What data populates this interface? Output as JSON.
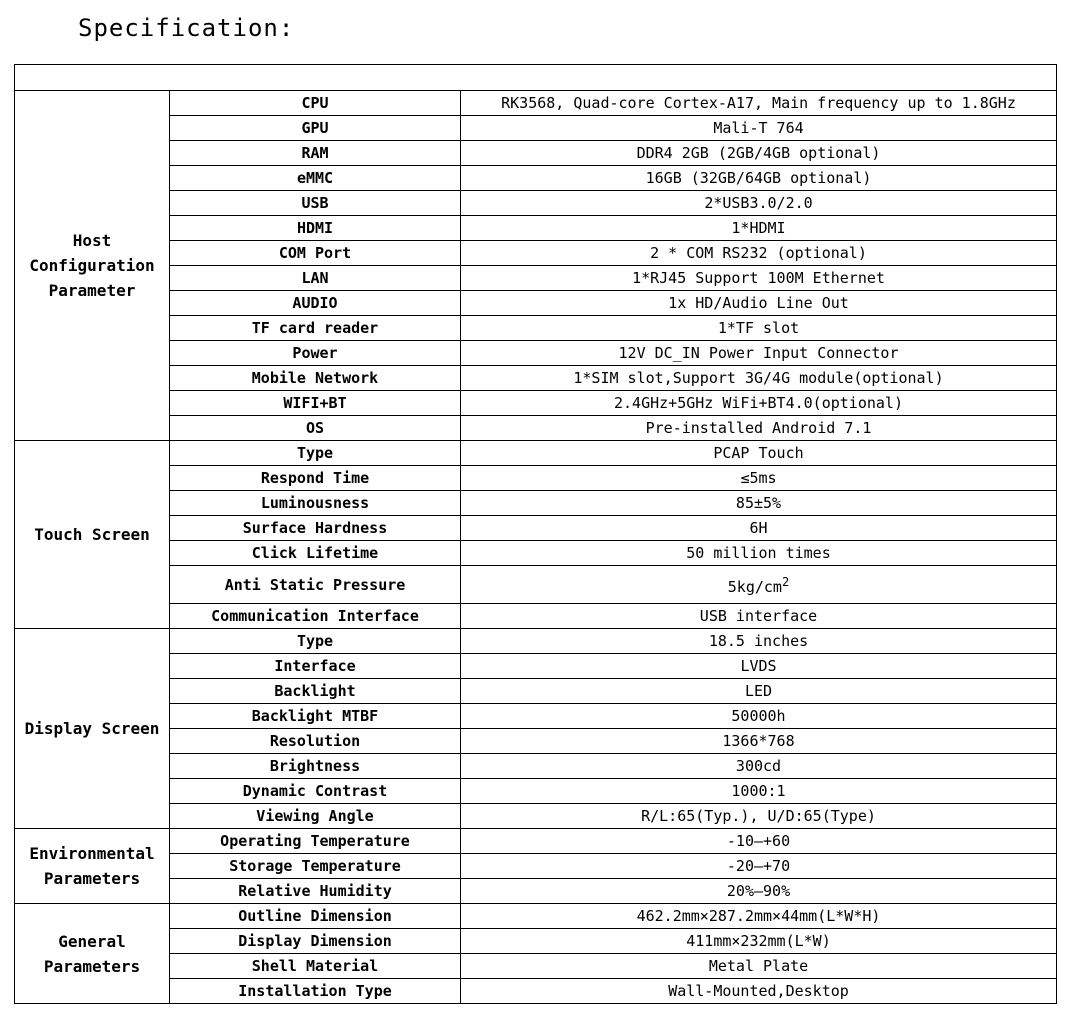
{
  "title": "Specification:",
  "groups": [
    {
      "label": "Host Configuration Parameter",
      "rows": [
        {
          "param": "CPU",
          "value": "RK3568, Quad-core Cortex-A17, Main frequency up to 1.8GHz"
        },
        {
          "param": "GPU",
          "value": "Mali-T 764"
        },
        {
          "param": "RAM",
          "value": "DDR4 2GB (2GB/4GB optional)"
        },
        {
          "param": "eMMC",
          "value": "16GB (32GB/64GB optional)"
        },
        {
          "param": "USB",
          "value": "2*USB3.0/2.0"
        },
        {
          "param": "HDMI",
          "value": "1*HDMI"
        },
        {
          "param": "COM Port",
          "value": "2 * COM RS232 (optional)"
        },
        {
          "param": "LAN",
          "value": "1*RJ45 Support 100M Ethernet"
        },
        {
          "param": "AUDIO",
          "value": "1x HD/Audio Line Out"
        },
        {
          "param": "TF card reader",
          "value": "1*TF slot"
        },
        {
          "param": "Power",
          "value": "12V DC_IN Power Input Connector"
        },
        {
          "param": "Mobile Network",
          "value": "1*SIM slot,Support 3G/4G module(optional)"
        },
        {
          "param": "WIFI+BT",
          "value": "2.4GHz+5GHz WiFi+BT4.0(optional)"
        },
        {
          "param": "OS",
          "value": "Pre-installed Android 7.1"
        }
      ]
    },
    {
      "label": "Touch Screen",
      "rows": [
        {
          "param": "Type",
          "value": "PCAP Touch"
        },
        {
          "param": "Respond Time",
          "value": "≤5ms"
        },
        {
          "param": "Luminousness",
          "value": "85±5%"
        },
        {
          "param": "Surface Hardness",
          "value": "6H"
        },
        {
          "param": "Click Lifetime",
          "value": "50 million times"
        },
        {
          "param": "Anti Static Pressure",
          "value": "5kg/cm",
          "sup": "2"
        },
        {
          "param": "Communication Interface",
          "value": "USB interface"
        }
      ]
    },
    {
      "label": "Display Screen",
      "rows": [
        {
          "param": "Type",
          "value": "18.5 inches"
        },
        {
          "param": "Interface",
          "value": "LVDS"
        },
        {
          "param": "Backlight",
          "value": "LED"
        },
        {
          "param": "Backlight MTBF",
          "value": "50000h"
        },
        {
          "param": "Resolution",
          "value": "1366*768"
        },
        {
          "param": "Brightness",
          "value": "300cd"
        },
        {
          "param": "Dynamic Contrast",
          "value": "1000:1"
        },
        {
          "param": "Viewing Angle",
          "value": "R/L:65(Typ.), U/D:65(Type)"
        }
      ]
    },
    {
      "label": "Environmental Parameters",
      "rows": [
        {
          "param": "Operating Temperature",
          "value": "-10—+60"
        },
        {
          "param": "Storage Temperature",
          "value": "-20—+70"
        },
        {
          "param": "Relative Humidity",
          "value": "20%—90%"
        }
      ]
    },
    {
      "label": "General Parameters",
      "rows": [
        {
          "param": "Outline Dimension",
          "value": "462.2mm×287.2mm×44mm(L*W*H)"
        },
        {
          "param": "Display Dimension",
          "value": "411mm×232mm(L*W)"
        },
        {
          "param": "Shell Material",
          "value": "Metal Plate"
        },
        {
          "param": "Installation Type",
          "value": "Wall-Mounted,Desktop"
        }
      ]
    }
  ]
}
